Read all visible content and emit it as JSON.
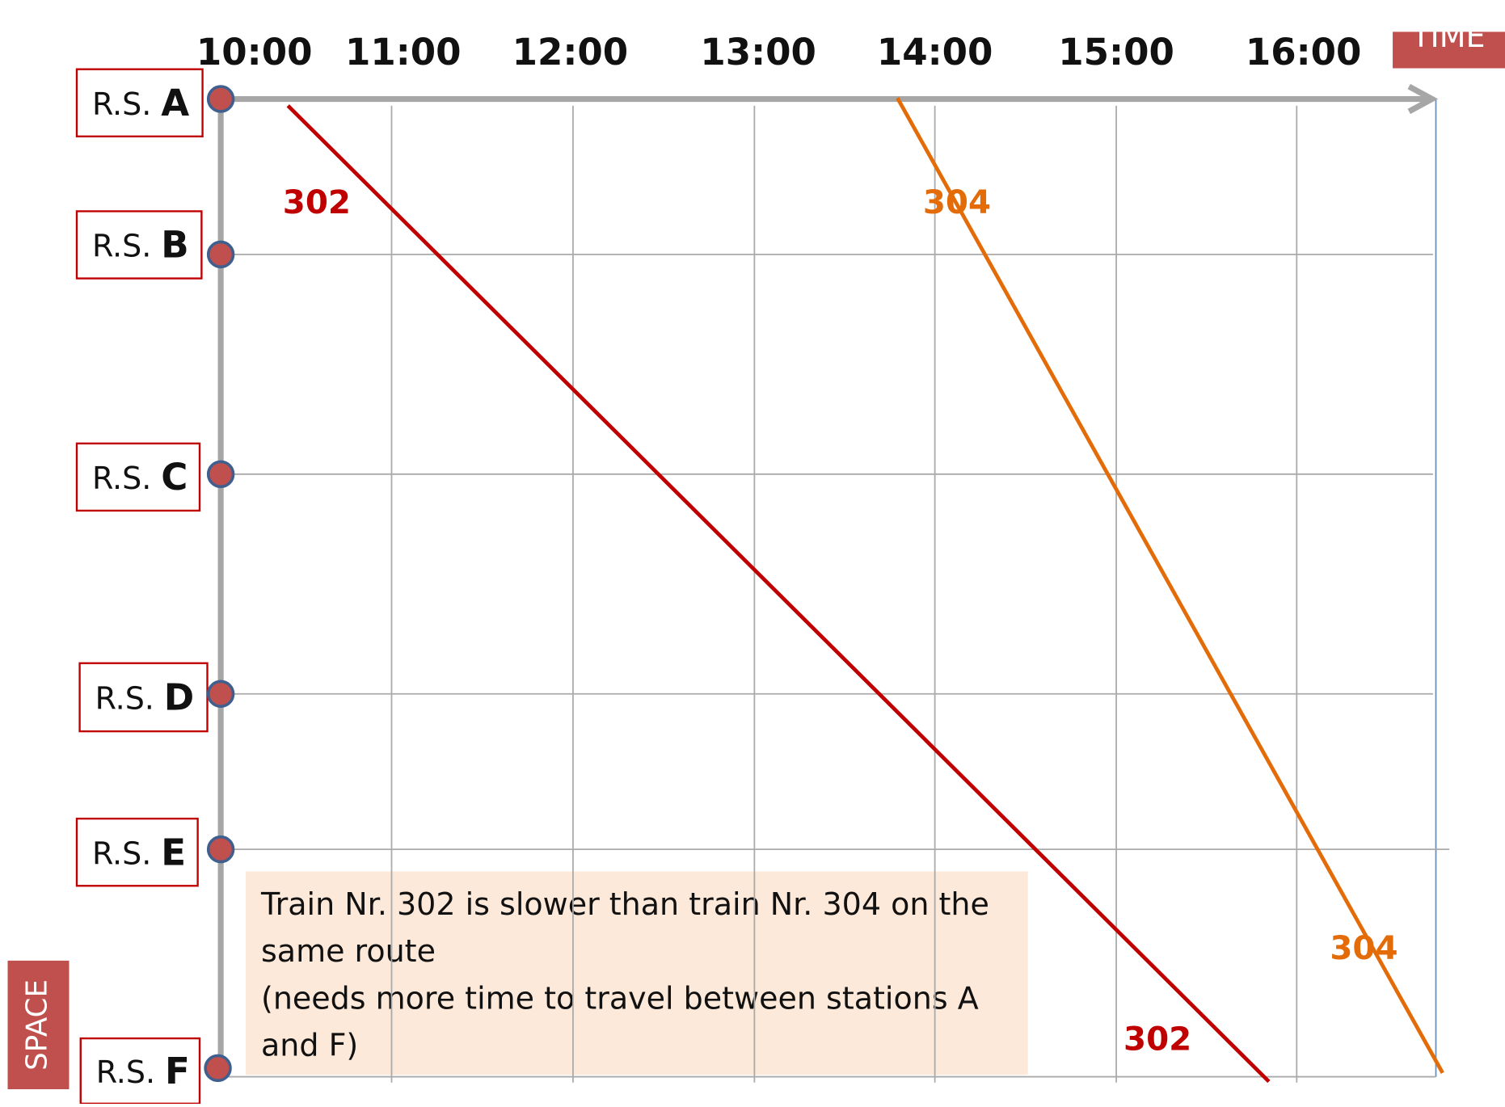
{
  "axis": {
    "time": "TIME",
    "space": "SPACE"
  },
  "times": [
    "10:00",
    "11:00",
    "12:00",
    "13:00",
    "14:00",
    "15:00",
    "16:00"
  ],
  "stations": [
    {
      "prefix": "R.S.",
      "letter": "A"
    },
    {
      "prefix": "R.S.",
      "letter": "B"
    },
    {
      "prefix": "R.S.",
      "letter": "C"
    },
    {
      "prefix": "R.S.",
      "letter": "D"
    },
    {
      "prefix": "R.S.",
      "letter": "E"
    },
    {
      "prefix": "R.S.",
      "letter": "F"
    }
  ],
  "trains": [
    {
      "label": "302",
      "color": "#c00000"
    },
    {
      "label": "304",
      "color": "#e36c09"
    }
  ],
  "note": {
    "paragraphs": [
      "Train Nr. 302 is slower than train Nr. 304 on the same route",
      "(needs more time to travel between stations A and F)"
    ]
  }
}
